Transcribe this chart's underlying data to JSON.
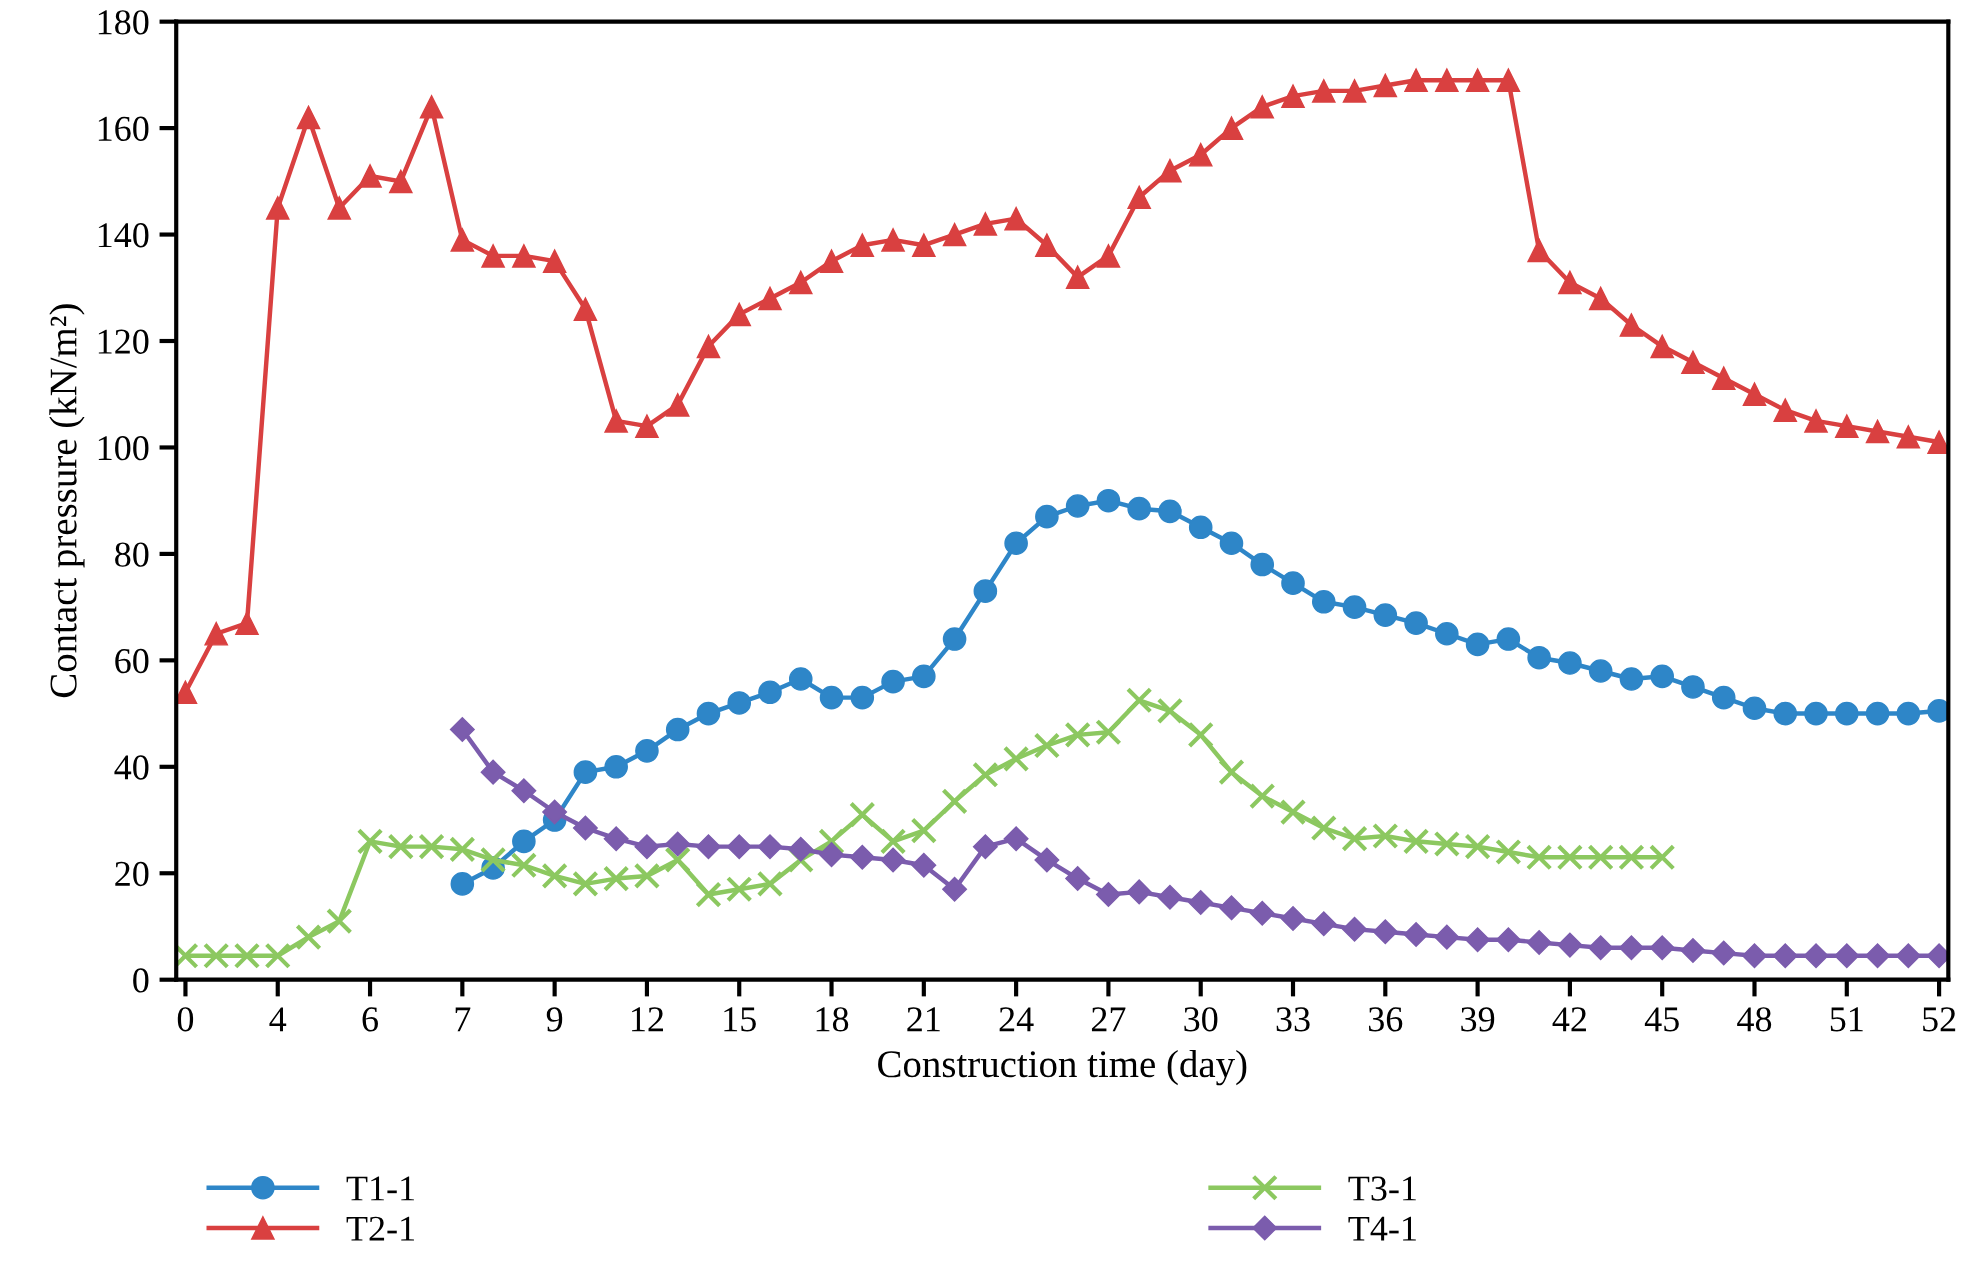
{
  "chart_data": {
    "type": "line",
    "xlabel": "Construction time (day)",
    "ylabel": "Contact pressure (kN/m²)",
    "categories": [
      "0",
      null,
      null,
      "4",
      null,
      null,
      "6",
      null,
      null,
      "7",
      null,
      null,
      "9",
      null,
      null,
      "12",
      null,
      null,
      "15",
      null,
      null,
      "18",
      null,
      null,
      "21",
      null,
      null,
      "24",
      null,
      null,
      "27",
      null,
      null,
      "30",
      null,
      null,
      "33",
      null,
      null,
      "36",
      null,
      null,
      "39",
      null,
      null,
      "42",
      null,
      null,
      "45",
      null,
      null,
      "48",
      null,
      null,
      "51",
      null,
      null,
      "52"
    ],
    "ylim": [
      0,
      180
    ],
    "yticks": [
      0,
      20,
      40,
      60,
      80,
      100,
      120,
      140,
      160,
      180
    ],
    "grid": false,
    "legend": "bottom",
    "series": [
      {
        "name": "T1-1",
        "color": "#2e86c8",
        "marker": "circle",
        "values": [
          null,
          null,
          null,
          null,
          null,
          null,
          null,
          null,
          null,
          18,
          21,
          26,
          30,
          39,
          40,
          43,
          47,
          50,
          52,
          54,
          56.5,
          53,
          53,
          56,
          57,
          64,
          73,
          82,
          87,
          89,
          90,
          88.5,
          88,
          85,
          82,
          78,
          74.5,
          71,
          70,
          68.5,
          67,
          65,
          63,
          64,
          60.5,
          59.5,
          58,
          56.5,
          57,
          55,
          53,
          51,
          50,
          50,
          50,
          50,
          50,
          50.5
        ]
      },
      {
        "name": "T2-1",
        "color": "#d94040",
        "marker": "triangle",
        "values": [
          54,
          65,
          67,
          145,
          162,
          145,
          151,
          150,
          164,
          139,
          136,
          136,
          135,
          126,
          105,
          104,
          108,
          119,
          125,
          128,
          131,
          135,
          138,
          139,
          138,
          140,
          142,
          143,
          138,
          132,
          136,
          147,
          152,
          155,
          160,
          164,
          166,
          167,
          167,
          168,
          169,
          169,
          169,
          169,
          137,
          131,
          128,
          123,
          119,
          116,
          113,
          110,
          107,
          105,
          104,
          103,
          102,
          101
        ]
      },
      {
        "name": "T3-1",
        "color": "#8cc860",
        "marker": "cross",
        "values": [
          4.5,
          4.5,
          4.5,
          4.5,
          8,
          11,
          26,
          25,
          25,
          24.5,
          22.5,
          21.5,
          19.5,
          18,
          19,
          19.5,
          22.5,
          16,
          17,
          18,
          22.5,
          26,
          31,
          26,
          28,
          33.5,
          38.5,
          41.5,
          44,
          46,
          46.5,
          52.5,
          50.5,
          46,
          39,
          34.5,
          31.5,
          28.5,
          26.5,
          27,
          26,
          25.5,
          25,
          24,
          23,
          23,
          23,
          23,
          23,
          null,
          null,
          null,
          null,
          null,
          null,
          null,
          null,
          null
        ]
      },
      {
        "name": "T4-1",
        "color": "#7b5cad",
        "marker": "diamond",
        "values": [
          null,
          null,
          null,
          null,
          null,
          null,
          null,
          null,
          null,
          47,
          39,
          35.5,
          31.5,
          28.5,
          26.5,
          25,
          25.5,
          25,
          25,
          25,
          24.5,
          23.5,
          23,
          22.5,
          21.5,
          17,
          25,
          26.5,
          22.5,
          19,
          16,
          16.5,
          15.5,
          14.5,
          13.5,
          12.5,
          11.5,
          10.5,
          9.5,
          9,
          8.5,
          8,
          7.5,
          7.5,
          7,
          6.5,
          6,
          6,
          6,
          5.5,
          5,
          4.5,
          4.5,
          4.5,
          4.5,
          4.5,
          4.5,
          4.5
        ]
      }
    ]
  }
}
